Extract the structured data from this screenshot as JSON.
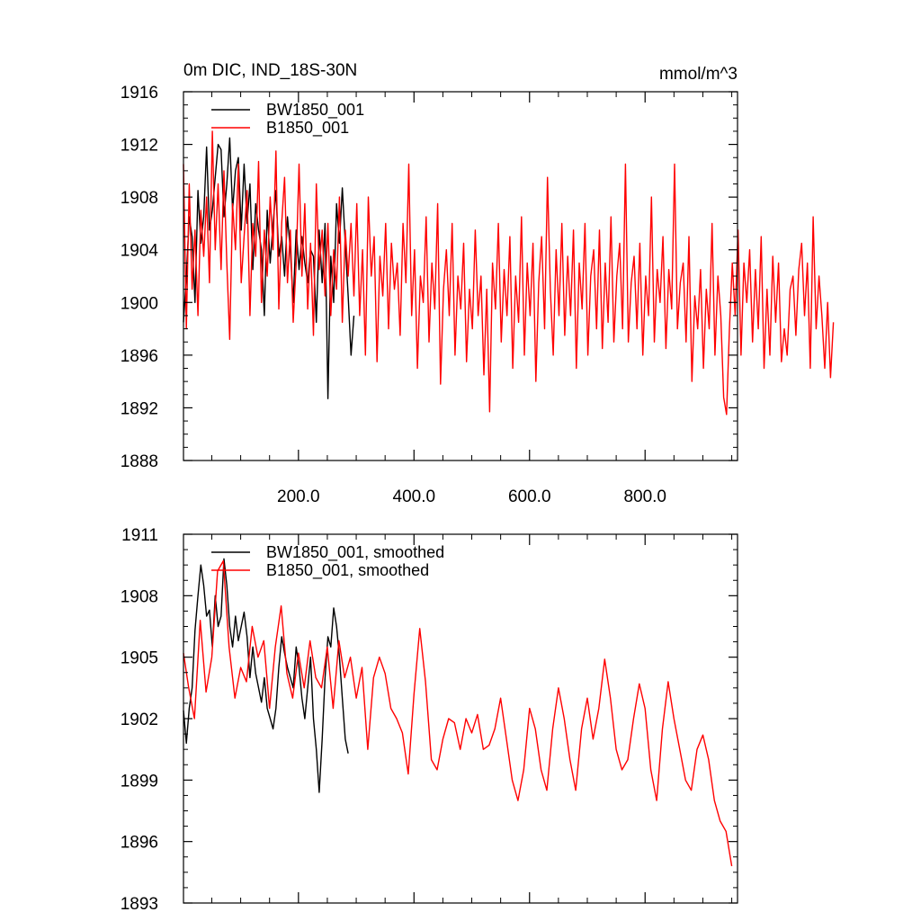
{
  "chart_data": [
    {
      "type": "line",
      "title": "0m DIC, IND_18S-30N",
      "units": "mmol/m^3",
      "xlabel": "",
      "ylabel": "",
      "xlim": [
        1,
        960
      ],
      "ylim": [
        1888,
        1916
      ],
      "x_ticks": [
        200,
        400,
        600,
        800
      ],
      "x_tick_labels": [
        "200.0",
        "400.0",
        "600.0",
        "800.0"
      ],
      "y_ticks": [
        1888,
        1892,
        1896,
        1900,
        1904,
        1908,
        1912,
        1916
      ],
      "y_tick_labels": [
        "1888",
        "1892",
        "1896",
        "1900",
        "1904",
        "1908",
        "1912",
        "1916"
      ],
      "legend_position": "top-left",
      "grid": false,
      "series": [
        {
          "name": "BW1850_001",
          "color": "#000000",
          "x_start": 1,
          "x_step": 5,
          "values": [
            1898.5,
            1902.0,
            1906.5,
            1905.0,
            1900.0,
            1908.5,
            1904.5,
            1906.5,
            1911.8,
            1905.5,
            1907.0,
            1909.5,
            1912.0,
            1911.6,
            1906.5,
            1909.0,
            1912.5,
            1907.0,
            1910.0,
            1911.0,
            1905.5,
            1910.5,
            1906.0,
            1909.0,
            1902.5,
            1907.5,
            1905.5,
            1904.0,
            1899.0,
            1907.0,
            1903.0,
            1906.0,
            1908.5,
            1903.5,
            1905.0,
            1902.0,
            1906.5,
            1904.0,
            1900.0,
            1905.5,
            1902.5,
            1905.0,
            1903.0,
            1901.5,
            1904.0,
            1903.5,
            1898.5,
            1905.5,
            1901.5,
            1906.0,
            1892.7,
            1903.5,
            1900.0,
            1907.5,
            1904.5,
            1908.7,
            1904.5,
            1900.5,
            1896.0,
            1899.0
          ]
        },
        {
          "name": "B1850_001",
          "color": "#ff0000",
          "x_start": 1,
          "x_step": 5,
          "values": [
            1910.5,
            1898.0,
            1909.0,
            1901.0,
            1905.5,
            1899.0,
            1907.0,
            1903.5,
            1908.0,
            1901.5,
            1913.0,
            1904.0,
            1909.0,
            1902.5,
            1910.0,
            1903.0,
            1897.2,
            1907.5,
            1904.0,
            1910.5,
            1901.5,
            1905.0,
            1908.5,
            1899.0,
            1906.0,
            1903.5,
            1910.7,
            1900.0,
            1905.5,
            1902.0,
            1908.0,
            1904.0,
            1911.5,
            1899.5,
            1906.0,
            1909.5,
            1901.5,
            1905.5,
            1898.5,
            1903.0,
            1910.5,
            1902.0,
            1907.5,
            1899.5,
            1904.5,
            1897.5,
            1909.0,
            1902.5,
            1905.5,
            1900.5,
            1906.0,
            1899.0,
            1904.0,
            1901.0,
            1908.0,
            1898.5,
            1905.5,
            1902.0,
            1906.0,
            1900.5,
            1907.5,
            1899.0,
            1904.0,
            1896.0,
            1908.0,
            1902.0,
            1905.0,
            1895.5,
            1903.5,
            1900.5,
            1906.0,
            1898.0,
            1904.5,
            1901.0,
            1903.0,
            1897.5,
            1906.0,
            1901.5,
            1910.5,
            1899.0,
            1904.0,
            1895.0,
            1902.0,
            1900.0,
            1906.5,
            1897.0,
            1903.0,
            1899.5,
            1907.5,
            1893.8,
            1901.0,
            1904.0,
            1899.0,
            1906.0,
            1896.0,
            1902.0,
            1899.5,
            1904.5,
            1895.5,
            1901.0,
            1898.0,
            1905.5,
            1899.0,
            1902.0,
            1894.5,
            1901.0,
            1891.7,
            1903.0,
            1899.5,
            1906.0,
            1897.0,
            1902.5,
            1899.0,
            1905.0,
            1895.0,
            1902.0,
            1898.5,
            1906.5,
            1896.0,
            1903.0,
            1899.0,
            1904.5,
            1894.0,
            1901.5,
            1905.0,
            1898.0,
            1909.5,
            1901.0,
            1896.0,
            1904.0,
            1899.0,
            1906.0,
            1897.5,
            1903.5,
            1899.0,
            1905.5,
            1895.0,
            1903.0,
            1899.5,
            1906.0,
            1896.0,
            1902.0,
            1904.0,
            1898.0,
            1905.5,
            1896.5,
            1903.0,
            1898.5,
            1906.5,
            1897.0,
            1902.0,
            1904.5,
            1898.0,
            1910.5,
            1897.0,
            1901.5,
            1903.5,
            1898.0,
            1904.5,
            1896.0,
            1902.0,
            1899.0,
            1908.0,
            1897.0,
            1902.5,
            1900.0,
            1905.0,
            1896.5,
            1902.5,
            1899.5,
            1910.5,
            1898.0,
            1901.5,
            1903.0,
            1897.0,
            1905.0,
            1894.0,
            1900.5,
            1898.0,
            1902.5,
            1895.0,
            1901.0,
            1898.0,
            1906.0,
            1896.0,
            1902.0,
            1899.0,
            1892.8,
            1891.5,
            1898.0,
            1903.0,
            1899.0,
            1905.5,
            1896.0,
            1903.0,
            1900.0,
            1904.0,
            1897.0,
            1902.5,
            1898.0,
            1905.0,
            1895.0,
            1901.0,
            1896.0,
            1903.5,
            1898.5,
            1903.0,
            1895.5,
            1898.0,
            1896.0,
            1901.0,
            1902.0,
            1897.5,
            1902.5,
            1904.5,
            1899.0,
            1903.0,
            1895.0,
            1906.5,
            1898.0,
            1902.0,
            1899.0,
            1895.0,
            1900.0,
            1894.3,
            1898.5
          ]
        }
      ]
    },
    {
      "type": "line",
      "title": "",
      "xlabel": "",
      "ylabel": "",
      "xlim": [
        1,
        960
      ],
      "ylim": [
        1893,
        1911
      ],
      "x_ticks": [
        200,
        400,
        600,
        800
      ],
      "y_ticks": [
        1893,
        1896,
        1899,
        1902,
        1905,
        1908,
        1911
      ],
      "y_tick_labels": [
        "1893",
        "1896",
        "1899",
        "1902",
        "1905",
        "1908",
        "1911"
      ],
      "legend_position": "top-left",
      "grid": false,
      "series": [
        {
          "name": "BW1850_001, smoothed",
          "color": "#000000",
          "x": [
            1,
            6,
            11,
            16,
            21,
            26,
            31,
            36,
            41,
            46,
            51,
            56,
            61,
            66,
            71,
            76,
            81,
            86,
            91,
            96,
            101,
            106,
            111,
            116,
            121,
            126,
            131,
            136,
            141,
            146,
            151,
            156,
            161,
            166,
            171,
            176,
            181,
            186,
            191,
            196,
            201,
            206,
            211,
            216,
            221,
            226,
            231,
            236,
            241,
            246,
            251,
            256,
            261,
            266,
            271,
            276,
            281,
            286
          ],
          "values": [
            1902.4,
            1900.8,
            1902.5,
            1903.5,
            1906.3,
            1908.0,
            1909.5,
            1908.5,
            1907.0,
            1907.3,
            1905.5,
            1908.0,
            1906.5,
            1907.0,
            1909.8,
            1908.5,
            1906.5,
            1905.5,
            1907.0,
            1905.8,
            1906.5,
            1907.2,
            1906.0,
            1904.0,
            1905.5,
            1904.2,
            1903.5,
            1902.8,
            1904.0,
            1902.5,
            1902.0,
            1901.5,
            1902.5,
            1904.5,
            1906.0,
            1905.2,
            1904.5,
            1904.0,
            1903.5,
            1905.5,
            1904.5,
            1903.0,
            1902.0,
            1903.5,
            1905.0,
            1902.0,
            1900.5,
            1898.4,
            1901.0,
            1904.0,
            1906.0,
            1905.5,
            1907.4,
            1906.5,
            1905.0,
            1903.0,
            1901.0,
            1900.3
          ]
        },
        {
          "name": "B1850_001, smoothed",
          "color": "#ff0000",
          "x": [
            1,
            10,
            20,
            30,
            40,
            50,
            60,
            70,
            80,
            90,
            100,
            110,
            120,
            130,
            140,
            150,
            160,
            170,
            180,
            190,
            200,
            210,
            220,
            230,
            240,
            250,
            260,
            270,
            280,
            290,
            300,
            310,
            320,
            330,
            340,
            350,
            360,
            370,
            380,
            390,
            400,
            410,
            420,
            430,
            440,
            450,
            460,
            470,
            480,
            490,
            500,
            510,
            520,
            530,
            540,
            550,
            560,
            570,
            580,
            590,
            600,
            610,
            620,
            630,
            640,
            650,
            660,
            670,
            680,
            690,
            700,
            710,
            720,
            730,
            740,
            750,
            760,
            770,
            780,
            790,
            800,
            810,
            820,
            830,
            840,
            850,
            860,
            870,
            880,
            890,
            900,
            910,
            920,
            930,
            940,
            950
          ],
          "values": [
            1905.2,
            1903.5,
            1902.0,
            1906.8,
            1903.3,
            1905.0,
            1909.2,
            1909.7,
            1905.5,
            1903.0,
            1904.5,
            1903.8,
            1906.5,
            1905.0,
            1905.8,
            1902.5,
            1905.5,
            1907.5,
            1904.2,
            1903.0,
            1905.2,
            1903.5,
            1905.8,
            1904.0,
            1903.5,
            1905.5,
            1902.5,
            1905.8,
            1904.0,
            1905.0,
            1903.0,
            1904.5,
            1900.5,
            1904.0,
            1905.0,
            1904.2,
            1902.5,
            1902.0,
            1901.3,
            1899.3,
            1903.2,
            1906.4,
            1903.8,
            1900.0,
            1899.5,
            1901.0,
            1902.0,
            1901.8,
            1900.5,
            1902.0,
            1901.3,
            1902.2,
            1900.5,
            1900.7,
            1901.5,
            1903.0,
            1901.0,
            1899.0,
            1898.0,
            1899.5,
            1902.5,
            1901.5,
            1899.5,
            1898.5,
            1901.5,
            1903.5,
            1902.0,
            1900.0,
            1898.5,
            1901.5,
            1903.0,
            1901.0,
            1902.5,
            1904.9,
            1903.0,
            1900.5,
            1899.5,
            1900.0,
            1902.0,
            1903.7,
            1902.5,
            1899.5,
            1898.0,
            1901.5,
            1903.8,
            1902.0,
            1900.5,
            1899.0,
            1898.5,
            1900.5,
            1901.2,
            1900.0,
            1898.0,
            1897.0,
            1896.5,
            1894.8
          ]
        }
      ]
    }
  ]
}
